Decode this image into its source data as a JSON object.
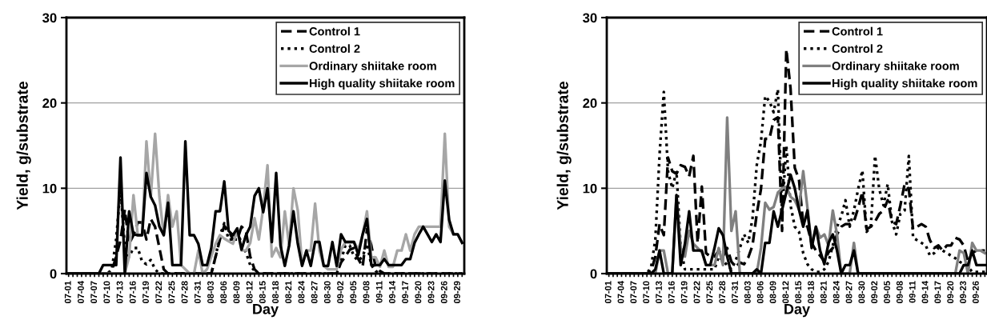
{
  "chart_data": [
    {
      "type": "line",
      "xlabel": "Day",
      "ylabel": "Yield, g/substrate",
      "ylim": [
        0,
        30
      ],
      "yticks": [
        0,
        10,
        20,
        30
      ],
      "grid": "y",
      "legend": "top right",
      "marker": "none",
      "categories": [
        "07-01",
        null,
        null,
        "07-04",
        null,
        null,
        "07-07",
        null,
        null,
        "07-10",
        null,
        null,
        "07-13",
        null,
        null,
        "07-16",
        null,
        null,
        "07-19",
        null,
        null,
        "07-22",
        null,
        null,
        "07-25",
        null,
        null,
        "07-28",
        null,
        null,
        "07-31",
        null,
        null,
        "08-03",
        null,
        null,
        "08-06",
        null,
        null,
        "08-09",
        null,
        null,
        "08-12",
        null,
        null,
        "08-15",
        null,
        null,
        "08-18",
        null,
        null,
        "08-21",
        null,
        null,
        "08-24",
        null,
        null,
        "08-27",
        null,
        null,
        "08-30",
        null,
        null,
        "09-02",
        null,
        null,
        "09-05",
        null,
        null,
        "09-08",
        null,
        null,
        "09-11",
        null,
        null,
        "09-14",
        null,
        null,
        "09-17",
        null,
        null,
        "09-20",
        null,
        null,
        "09-23",
        null,
        null,
        "09-26",
        null,
        null,
        "09-29",
        null
      ],
      "series": [
        {
          "name": "Control 1",
          "color": "#000000",
          "line_style": "dashed",
          "values": [
            0,
            0,
            0,
            0,
            0,
            0,
            0,
            0,
            0,
            0,
            0.3,
            2,
            3.9,
            7.5,
            3.5,
            4.5,
            6,
            6,
            4,
            6.4,
            5.5,
            3,
            0.5,
            0,
            0,
            0,
            0,
            0,
            0,
            0,
            0,
            0,
            0,
            0,
            2,
            4,
            5.6,
            5,
            4,
            4,
            5.5,
            5,
            2,
            0.5,
            0,
            0,
            0,
            0,
            0,
            0,
            0,
            0,
            0,
            0,
            0,
            0,
            0,
            0,
            0,
            0,
            0,
            0,
            0,
            1.3,
            2,
            2.8,
            3,
            1.7,
            0.8,
            5.2,
            3.3,
            0.8,
            0.3,
            0,
            0,
            0,
            0,
            0,
            0,
            0,
            0,
            0,
            0,
            0,
            0,
            0,
            0,
            0,
            0,
            0,
            0,
            0
          ]
        },
        {
          "name": "Control 2",
          "color": "#000000",
          "line_style": "dotted",
          "values": [
            0,
            0,
            0,
            0,
            0,
            0,
            0,
            0,
            0,
            0,
            0.5,
            4,
            10,
            3,
            2,
            3,
            3,
            1.4,
            1.1,
            1.6,
            0.5,
            0,
            0,
            0,
            0,
            0,
            0,
            0,
            0,
            0,
            0,
            0,
            0,
            0,
            2,
            4.5,
            5.9,
            4,
            4,
            5,
            3.5,
            2.5,
            1,
            0.3,
            0,
            0,
            0,
            0,
            0,
            0,
            0,
            0,
            0,
            0,
            0,
            0,
            0,
            0,
            0,
            0,
            0,
            0,
            0,
            1.5,
            3.3,
            3.3,
            2,
            1.5,
            2,
            3.5,
            1,
            0.3,
            0,
            0,
            0,
            0,
            0,
            0,
            0,
            0,
            0,
            0,
            0,
            0,
            0,
            0,
            0,
            0,
            0,
            0,
            0,
            0
          ]
        },
        {
          "name": "Ordinary shiitake room",
          "color": "#a6a6a6",
          "line_style": "solid",
          "values": [
            0,
            0,
            0,
            0,
            0,
            0,
            0,
            0,
            0,
            0,
            0,
            0,
            0,
            0,
            2,
            9.2,
            4.5,
            4.5,
            15.5,
            9,
            16.4,
            9,
            4.5,
            9.2,
            5.5,
            7.3,
            1,
            0.5,
            0,
            0,
            2.7,
            0,
            0.5,
            2,
            3.5,
            4.5,
            4.1,
            3.8,
            3.5,
            5,
            2.7,
            2.7,
            3.6,
            6.5,
            4,
            7.7,
            12.7,
            2,
            3,
            1.9,
            7.3,
            3.3,
            10,
            7.4,
            1,
            2.7,
            2.7,
            8.2,
            2.7,
            0.9,
            0.5,
            0.5,
            0.5,
            2.8,
            3.7,
            3.7,
            3.7,
            2.8,
            4.6,
            7.3,
            1.9,
            1.9,
            0.8,
            2.7,
            0.8,
            0.8,
            2.7,
            2.7,
            4.6,
            2.7,
            4.6,
            5.5,
            5.5,
            5.5,
            5.5,
            5.5,
            5.5,
            16.4,
            5.5,
            4.6,
            4.6,
            3.6
          ]
        },
        {
          "name": "High quality shiitake room",
          "color": "#000000",
          "line_style": "solid",
          "values": [
            0,
            0,
            0,
            0,
            0,
            0,
            0,
            0,
            1,
            1,
            1,
            1,
            13.6,
            0,
            7.3,
            4.6,
            4.5,
            4.5,
            11.8,
            9,
            8,
            5.5,
            4.5,
            8.3,
            1,
            1,
            1,
            15.5,
            4.5,
            4.5,
            3.5,
            1,
            1,
            3,
            7.3,
            7.3,
            10.8,
            5,
            4.5,
            5.3,
            2.8,
            4.5,
            5.5,
            9.1,
            10,
            7.2,
            10,
            3.7,
            11.8,
            3.3,
            0.9,
            3.3,
            7.3,
            3.5,
            0.9,
            2.7,
            0.9,
            3.7,
            3.7,
            0.9,
            0.9,
            3.7,
            0.9,
            4.6,
            3.7,
            3.7,
            3.7,
            2.2,
            4.6,
            6.4,
            1,
            1,
            1,
            1.7,
            1,
            1,
            1,
            1,
            1.7,
            1.7,
            3.6,
            4.6,
            5.5,
            4.6,
            3.7,
            4.6,
            3.7,
            10.9,
            6.3,
            4.6,
            4.6,
            3.6
          ]
        }
      ]
    },
    {
      "type": "line",
      "xlabel": "Day",
      "ylabel": "Yield, g/substrate",
      "ylim": [
        0,
        30
      ],
      "yticks": [
        0,
        10,
        20,
        30
      ],
      "grid": "y",
      "legend": "top right",
      "marker": "none",
      "categories": [
        "07-01",
        null,
        null,
        "07-04",
        null,
        null,
        "07-07",
        null,
        null,
        "07-10",
        null,
        null,
        "07-13",
        null,
        null,
        "07-16",
        null,
        null,
        "07-19",
        null,
        null,
        "07-22",
        null,
        null,
        "07-25",
        null,
        null,
        "07-28",
        null,
        null,
        "07-31",
        null,
        null,
        "08-03",
        null,
        null,
        "08-06",
        null,
        null,
        "08-09",
        null,
        null,
        "08-12",
        null,
        null,
        "08-15",
        null,
        null,
        "08-18",
        null,
        null,
        "08-21",
        null,
        null,
        "08-24",
        null,
        null,
        "08-27",
        null,
        null,
        "08-30",
        null,
        null,
        "09-02",
        null,
        null,
        "09-05",
        null,
        null,
        "09-08",
        null,
        null,
        "09-11",
        null,
        null,
        "09-14",
        null,
        null,
        "09-17",
        null,
        null,
        "09-20",
        null,
        null,
        "09-23",
        null,
        null,
        "09-26",
        null,
        null
      ],
      "series": [
        {
          "name": "Control 1",
          "color": "#000000",
          "line_style": "dashed",
          "values": [
            0,
            0,
            0,
            0,
            0,
            0,
            0,
            0,
            0,
            0,
            0.3,
            2,
            5.8,
            4.5,
            13.6,
            12,
            11.7,
            12.7,
            12.5,
            11.4,
            13.8,
            3.6,
            10.2,
            2.4,
            2,
            2,
            2.7,
            2,
            3,
            1.4,
            0.8,
            1.3,
            1.1,
            1.9,
            3.3,
            7,
            9.9,
            15.8,
            15.8,
            18,
            18.3,
            5,
            26.3,
            21.7,
            12.4,
            11,
            5.8,
            5.5,
            3.6,
            2.7,
            2.1,
            1.4,
            2.5,
            3,
            4.6,
            5.5,
            5.8,
            5.8,
            6.1,
            7.7,
            9.6,
            5.2,
            5.5,
            6.1,
            7,
            7.4,
            8.6,
            6.1,
            5.8,
            8,
            10.5,
            9.9,
            5.2,
            5.5,
            5.8,
            5.5,
            3.9,
            3,
            3.3,
            2.7,
            3.3,
            3.3,
            4.2,
            4,
            3.3,
            1.4,
            2.4,
            2.7,
            2.7,
            2.7
          ]
        },
        {
          "name": "Control 2",
          "color": "#000000",
          "line_style": "dotted",
          "values": [
            0,
            0,
            0,
            0,
            0,
            0,
            0,
            0,
            0,
            0,
            0.8,
            4,
            14,
            21.3,
            12,
            10,
            12,
            3,
            0.5,
            0.5,
            0.5,
            0.5,
            0.5,
            0.5,
            0.5,
            0.5,
            2,
            1.5,
            1,
            0.5,
            1.5,
            3,
            4.6,
            3.6,
            6.5,
            12.7,
            15.5,
            20.8,
            20.2,
            18.9,
            21.6,
            7,
            15,
            8,
            5.5,
            4.9,
            2.4,
            1.1,
            0.5,
            0.2,
            0.2,
            0.5,
            1.4,
            3.3,
            5.5,
            6.7,
            8.6,
            5.5,
            7.4,
            9.9,
            12.1,
            4.9,
            5.5,
            13.8,
            9.9,
            8,
            10.5,
            6.1,
            4.6,
            7,
            7.4,
            13.8,
            4.2,
            3.9,
            3.6,
            3.3,
            2.1,
            2.4,
            3,
            2.7,
            2.4,
            2.1,
            1.8,
            1.4,
            1.1,
            0.8,
            0.2,
            0.2,
            0.2,
            0.2
          ]
        },
        {
          "name": "Ordinary shiitake room",
          "color": "#808080",
          "line_style": "solid",
          "values": [
            0,
            0,
            0,
            0,
            0,
            0,
            0,
            0,
            0,
            0,
            0,
            0,
            2.7,
            2.7,
            0,
            0,
            9.2,
            3,
            2,
            5,
            3.5,
            3,
            2.5,
            1,
            1,
            1,
            3,
            1,
            18.3,
            5,
            7.3,
            0,
            0,
            0,
            0,
            0,
            3,
            8.3,
            7.5,
            7.8,
            9.5,
            10,
            10.2,
            9,
            8.6,
            7.5,
            12,
            7.7,
            3.3,
            5.5,
            4.2,
            4.6,
            3.3,
            7.4,
            4.6,
            0,
            0,
            0,
            3.6,
            0,
            0,
            0,
            0,
            0,
            0,
            0,
            0,
            0,
            0,
            0,
            0,
            0,
            0,
            0,
            0,
            0,
            0,
            0,
            0,
            0,
            0,
            0,
            0,
            2.7,
            2.4,
            0,
            3.6,
            2.7,
            2.7,
            2.4
          ]
        },
        {
          "name": "High quality shiitake room",
          "color": "#000000",
          "line_style": "solid",
          "values": [
            0,
            0,
            0,
            0,
            0,
            0,
            0,
            0,
            0,
            0,
            0,
            0.5,
            2.7,
            0,
            0,
            0,
            9.2,
            1,
            3.5,
            7.3,
            2.7,
            2.7,
            2.7,
            1,
            1,
            3,
            5.3,
            4.5,
            2,
            0,
            0,
            0,
            0,
            0,
            0,
            0.5,
            0,
            3.6,
            3.6,
            7.3,
            5.5,
            7.5,
            9.5,
            11.6,
            10,
            7.5,
            5.5,
            7.4,
            3,
            5.5,
            2.7,
            1.1,
            3.6,
            4.6,
            2.7,
            0,
            1,
            1,
            2.7,
            0,
            0,
            0,
            0,
            0,
            0,
            0,
            0,
            0,
            0,
            0,
            0,
            0,
            0,
            0,
            0,
            0,
            0,
            0,
            0,
            0,
            0,
            0,
            0,
            0,
            1,
            1,
            2.7,
            1,
            1,
            1
          ]
        }
      ]
    }
  ]
}
